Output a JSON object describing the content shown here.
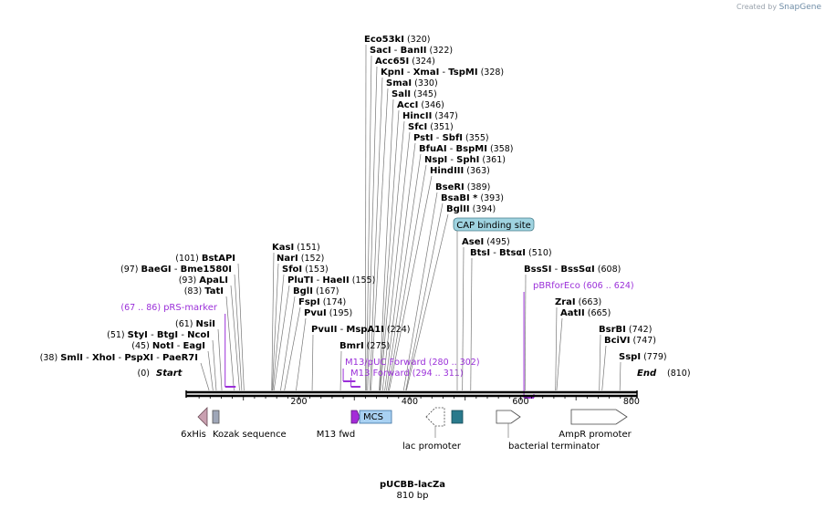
{
  "credit": {
    "prefix": "Created by",
    "brand": "SnapGene"
  },
  "plasmid": {
    "name": "pUCBB-lacZa",
    "length": "810 bp"
  },
  "ruler": {
    "start_label": "Start",
    "start_pos": "(0)",
    "end_label": "End",
    "end_pos": "(810)",
    "ticks": [
      "200",
      "400",
      "600",
      "800"
    ]
  },
  "enzymes": {
    "e01": {
      "name": "SmlI",
      "pos": "(38)",
      "extra": [
        "XhoI",
        "PspXI",
        "PaeR7I"
      ]
    },
    "e02": {
      "name": "NotI",
      "pos": "(45)",
      "extra": [
        "EagI"
      ]
    },
    "e03": {
      "name": "StyI",
      "pos": "(51)",
      "extra": [
        "BtgI",
        "NcoI"
      ]
    },
    "e04": {
      "name": "NsiI",
      "pos": "(61)",
      "extra": []
    },
    "e05": {
      "name": "TatI",
      "pos": "(83)",
      "extra": []
    },
    "e06": {
      "name": "ApaLI",
      "pos": "(93)",
      "extra": []
    },
    "e07": {
      "name": "BaeGI",
      "pos": "(97)",
      "extra": [
        "Bme1580I"
      ]
    },
    "e08": {
      "name": "BstAPI",
      "pos": "(101)",
      "extra": []
    },
    "e09": {
      "name": "KasI",
      "pos": "(151)",
      "extra": []
    },
    "e10": {
      "name": "NarI",
      "pos": "(152)",
      "extra": []
    },
    "e11": {
      "name": "SfoI",
      "pos": "(153)",
      "extra": []
    },
    "e12": {
      "name": "PluTI",
      "pos": "(155)",
      "extra": [
        "HaeII"
      ]
    },
    "e13": {
      "name": "BglI",
      "pos": "(167)",
      "extra": []
    },
    "e14": {
      "name": "FspI",
      "pos": "(174)",
      "extra": []
    },
    "e15": {
      "name": "PvuI",
      "pos": "(195)",
      "extra": []
    },
    "e16": {
      "name": "PvuII",
      "pos": "(224)",
      "extra": [
        "MspA1I"
      ]
    },
    "e17": {
      "name": "BmrI",
      "pos": "(275)",
      "extra": []
    },
    "e18": {
      "name": "Eco53kI",
      "pos": "(320)",
      "extra": []
    },
    "e19": {
      "name": "SacI",
      "pos": "(322)",
      "extra": [
        "BanII"
      ]
    },
    "e20": {
      "name": "Acc65I",
      "pos": "(324)",
      "extra": []
    },
    "e21": {
      "name": "KpnI",
      "pos": "(328)",
      "extra": [
        "XmaI",
        "TspMI"
      ]
    },
    "e22": {
      "name": "SmaI",
      "pos": "(330)",
      "extra": []
    },
    "e23": {
      "name": "SalI",
      "pos": "(345)",
      "extra": []
    },
    "e24": {
      "name": "AccI",
      "pos": "(346)",
      "extra": []
    },
    "e25": {
      "name": "HincII",
      "pos": "(347)",
      "extra": []
    },
    "e26": {
      "name": "SfcI",
      "pos": "(351)",
      "extra": []
    },
    "e27": {
      "name": "PstI",
      "pos": "(355)",
      "extra": [
        "SbfI"
      ]
    },
    "e28": {
      "name": "BfuAI",
      "pos": "(358)",
      "extra": [
        "BspMI"
      ]
    },
    "e29": {
      "name": "NspI",
      "pos": "(361)",
      "extra": [
        "SphI"
      ]
    },
    "e30": {
      "name": "HindIII",
      "pos": "(363)",
      "extra": []
    },
    "e31": {
      "name": "BseRI",
      "pos": "(389)",
      "extra": []
    },
    "e32": {
      "name": "BsaBI",
      "pos": "(393)",
      "extra": [],
      "star": "*"
    },
    "e33": {
      "name": "BglII",
      "pos": "(394)",
      "extra": []
    },
    "e34": {
      "name": "AseI",
      "pos": "(495)",
      "extra": []
    },
    "e35": {
      "name": "BtsI",
      "pos": "(510)",
      "extra": [
        "BtsαI"
      ]
    },
    "e36": {
      "name": "BssSI",
      "pos": "(608)",
      "extra": [
        "BssSαI"
      ]
    },
    "e37": {
      "name": "ZraI",
      "pos": "(663)",
      "extra": []
    },
    "e38": {
      "name": "AatII",
      "pos": "(665)",
      "extra": []
    },
    "e39": {
      "name": "BsrBI",
      "pos": "(742)",
      "extra": []
    },
    "e40": {
      "name": "BciVI",
      "pos": "(747)",
      "extra": []
    },
    "e41": {
      "name": "SspI",
      "pos": "(779)",
      "extra": []
    }
  },
  "primers": {
    "p1": {
      "name": "pRS-marker",
      "range": "(67 .. 86)"
    },
    "p2": {
      "name": "M13/pUC Forward",
      "range": "(280 .. 302)"
    },
    "p3": {
      "name": "M13 Forward",
      "range": "(294 .. 311)"
    },
    "p4": {
      "name": "pBRforEco",
      "range": "(606 .. 624)"
    }
  },
  "features": {
    "f1": {
      "name": "CAP binding site"
    },
    "f2": {
      "name": "6xHis"
    },
    "f3": {
      "name": "Kozak sequence"
    },
    "f4": {
      "name": "M13 fwd"
    },
    "f5": {
      "name": "MCS"
    },
    "f6": {
      "name": "lac promoter"
    },
    "f7": {
      "name": "bacterial terminator"
    },
    "f8": {
      "name": "AmpR promoter"
    }
  },
  "colors": {
    "primer": "#9b30d9",
    "cap": "#9fd3e0",
    "lac": "#2a7a8c",
    "kozak": "#9fa7b8",
    "his": "#c9a0b0",
    "m13": "#a42bd8",
    "mcs": "#a9d1f2"
  }
}
